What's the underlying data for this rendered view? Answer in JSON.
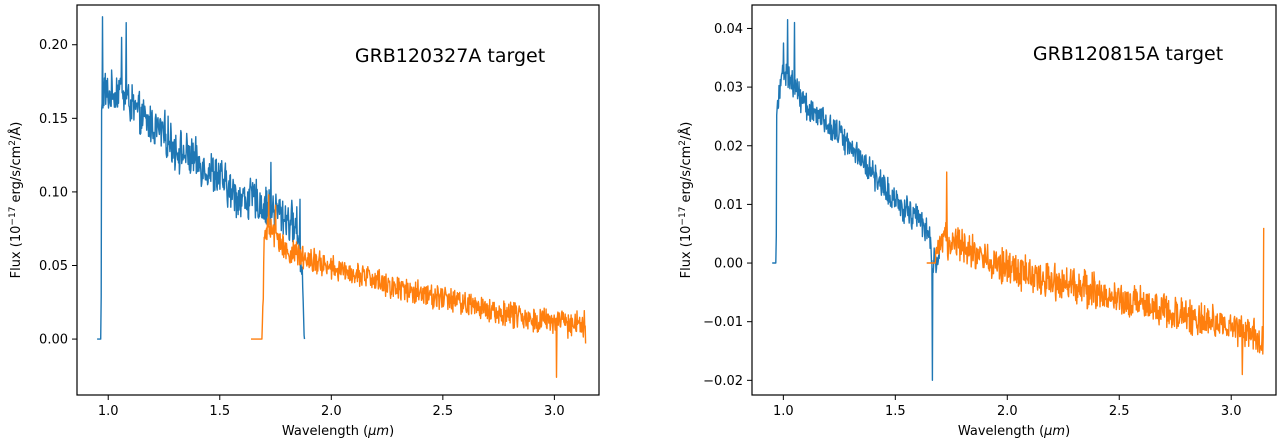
{
  "figure": {
    "panels": [
      "left",
      "right"
    ]
  },
  "chart_data": [
    {
      "type": "line",
      "annotation": "GRB120327A target",
      "xlabel_prefix": "Wavelength (",
      "xlabel_unit": "μm",
      "xlabel_suffix": ")",
      "ylabel_prefix": "Flux (10",
      "ylabel_exp": "−17",
      "ylabel_mid": " erg/s/cm",
      "ylabel_sq": "2",
      "ylabel_suffix": "/Å)",
      "xlim": [
        0.86,
        3.2
      ],
      "ylim": [
        -0.038,
        0.227
      ],
      "xticks": [
        1.0,
        1.5,
        2.0,
        2.5,
        3.0
      ],
      "xtick_labels": [
        "1.0",
        "1.5",
        "2.0",
        "2.5",
        "3.0"
      ],
      "yticks": [
        0.0,
        0.05,
        0.1,
        0.15,
        0.2
      ],
      "ytick_labels": [
        "0.00",
        "0.05",
        "0.10",
        "0.15",
        "0.20"
      ],
      "grid": false,
      "series": [
        {
          "color": "#1f77b4",
          "x": [
            0.95,
            0.968,
            0.97,
            0.98,
            1.0,
            1.05,
            1.1,
            1.15,
            1.2,
            1.25,
            1.3,
            1.35,
            1.4,
            1.45,
            1.5,
            1.55,
            1.6,
            1.65,
            1.7,
            1.75,
            1.8,
            1.85,
            1.87,
            1.88
          ],
          "y": [
            0.0,
            0.0,
            0.15,
            0.17,
            0.165,
            0.17,
            0.16,
            0.15,
            0.145,
            0.14,
            0.13,
            0.125,
            0.12,
            0.115,
            0.11,
            0.1,
            0.095,
            0.095,
            0.09,
            0.088,
            0.082,
            0.075,
            0.045,
            0.0
          ],
          "noise": 0.012,
          "spikes": [
            [
              0.975,
              0.219
            ],
            [
              1.08,
              0.215
            ],
            [
              1.06,
              0.205
            ],
            [
              1.73,
              0.12
            ],
            [
              1.86,
              0.095
            ],
            [
              1.875,
              0.015
            ]
          ]
        },
        {
          "color": "#ff7f0e",
          "x": [
            1.64,
            1.69,
            1.7,
            1.72,
            1.75,
            1.8,
            1.9,
            2.0,
            2.1,
            2.2,
            2.3,
            2.4,
            2.5,
            2.6,
            2.7,
            2.8,
            2.9,
            3.0,
            3.05,
            3.1,
            3.14
          ],
          "y": [
            0.0,
            0.0,
            0.07,
            0.075,
            0.07,
            0.06,
            0.055,
            0.048,
            0.045,
            0.04,
            0.035,
            0.032,
            0.028,
            0.024,
            0.02,
            0.017,
            0.014,
            0.012,
            0.01,
            0.01,
            0.01
          ],
          "noise": 0.007,
          "spikes": [
            [
              1.72,
              0.098
            ],
            [
              1.75,
              0.091
            ],
            [
              3.01,
              -0.026
            ],
            [
              3.14,
              -0.003
            ]
          ]
        }
      ]
    },
    {
      "type": "line",
      "annotation": "GRB120815A target",
      "xlabel_prefix": "Wavelength (",
      "xlabel_unit": "μm",
      "xlabel_suffix": ")",
      "ylabel_prefix": "Flux (10",
      "ylabel_exp": "−17",
      "ylabel_mid": " erg/s/cm",
      "ylabel_sq": "2",
      "ylabel_suffix": "/Å)",
      "xlim": [
        0.86,
        3.2
      ],
      "ylim": [
        -0.0225,
        0.044
      ],
      "xticks": [
        1.0,
        1.5,
        2.0,
        2.5,
        3.0
      ],
      "xtick_labels": [
        "1.0",
        "1.5",
        "2.0",
        "2.5",
        "3.0"
      ],
      "yticks": [
        -0.02,
        -0.01,
        0.0,
        0.01,
        0.02,
        0.03,
        0.04
      ],
      "ytick_labels": [
        "−0.02",
        "−0.01",
        "0.00",
        "0.01",
        "0.02",
        "0.03",
        "0.04"
      ],
      "grid": false,
      "series": [
        {
          "color": "#1f77b4",
          "x": [
            0.95,
            0.968,
            0.97,
            1.0,
            1.05,
            1.1,
            1.15,
            1.2,
            1.25,
            1.3,
            1.35,
            1.4,
            1.45,
            1.5,
            1.55,
            1.6,
            1.65,
            1.66,
            1.68,
            1.7
          ],
          "y": [
            0.0,
            0.0,
            0.027,
            0.033,
            0.03,
            0.027,
            0.025,
            0.024,
            0.022,
            0.02,
            0.018,
            0.015,
            0.013,
            0.011,
            0.009,
            0.008,
            0.005,
            0.002,
            -0.001,
            0.003
          ],
          "noise": 0.002,
          "spikes": [
            [
              1.0,
              0.0375
            ],
            [
              1.02,
              0.0415
            ],
            [
              1.05,
              0.041
            ],
            [
              1.665,
              -0.02
            ]
          ]
        },
        {
          "color": "#ff7f0e",
          "x": [
            1.64,
            1.68,
            1.7,
            1.75,
            1.8,
            1.9,
            2.0,
            2.1,
            2.2,
            2.3,
            2.4,
            2.5,
            2.6,
            2.7,
            2.8,
            2.9,
            3.0,
            3.1,
            3.13,
            3.145
          ],
          "y": [
            0.0,
            0.0,
            0.003,
            0.004,
            0.003,
            0.001,
            -0.001,
            -0.002,
            -0.003,
            -0.004,
            -0.005,
            -0.006,
            -0.007,
            -0.008,
            -0.009,
            -0.01,
            -0.011,
            -0.012,
            -0.013,
            -0.013
          ],
          "noise": 0.0025,
          "spikes": [
            [
              1.73,
              0.0155
            ],
            [
              3.145,
              0.006
            ],
            [
              3.05,
              -0.019
            ]
          ]
        }
      ]
    }
  ]
}
